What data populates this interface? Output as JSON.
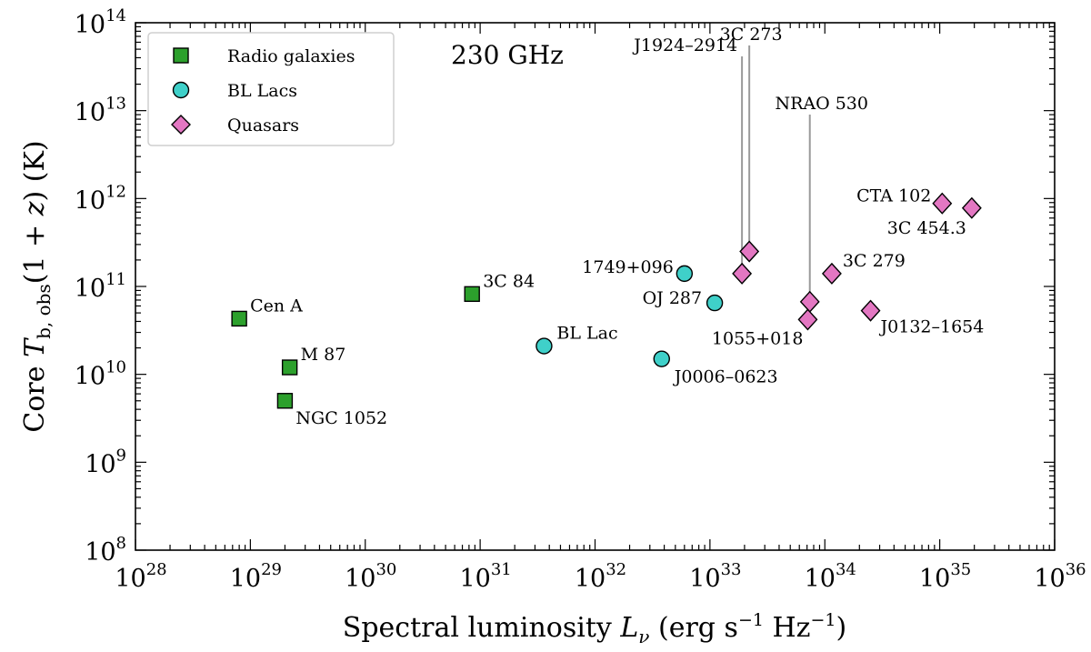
{
  "chart_data": {
    "type": "scatter",
    "xscale": "log",
    "yscale": "log",
    "xlim": [
      1e+28,
      1e+36
    ],
    "ylim": [
      100000000.0,
      100000000000000.0
    ],
    "grid": false,
    "legend_position": "top-left",
    "xlabel": "Spectral luminosity  L_ν  (erg s⁻¹ Hz⁻¹)",
    "ylabel": "Core  T_b,obs(1 + z)  (K)",
    "annotation": "230 GHz",
    "x_ticks": [
      {
        "base": "10",
        "exp": "28"
      },
      {
        "base": "10",
        "exp": "29"
      },
      {
        "base": "10",
        "exp": "30"
      },
      {
        "base": "10",
        "exp": "31"
      },
      {
        "base": "10",
        "exp": "32"
      },
      {
        "base": "10",
        "exp": "33"
      },
      {
        "base": "10",
        "exp": "34"
      },
      {
        "base": "10",
        "exp": "35"
      },
      {
        "base": "10",
        "exp": "36"
      }
    ],
    "y_ticks": [
      {
        "base": "10",
        "exp": "8"
      },
      {
        "base": "10",
        "exp": "9"
      },
      {
        "base": "10",
        "exp": "10"
      },
      {
        "base": "10",
        "exp": "11"
      },
      {
        "base": "10",
        "exp": "12"
      },
      {
        "base": "10",
        "exp": "13"
      },
      {
        "base": "10",
        "exp": "14"
      }
    ],
    "series": [
      {
        "name": "Radio galaxies",
        "marker": "square",
        "color": "#2ca02c",
        "points": [
          {
            "label": "Cen A",
            "x": 8e+28,
            "y": 43000000000.0
          },
          {
            "label": "M 87",
            "x": 2.2e+29,
            "y": 12000000000.0
          },
          {
            "label": "NGC 1052",
            "x": 2e+29,
            "y": 5000000000.0
          },
          {
            "label": "3C 84",
            "x": 8.5e+30,
            "y": 82000000000.0
          }
        ]
      },
      {
        "name": "BL Lacs",
        "marker": "circle",
        "color": "#3fd0c9",
        "points": [
          {
            "label": "BL Lac",
            "x": 3.6e+31,
            "y": 21000000000.0
          },
          {
            "label": "1749+096",
            "x": 6e+32,
            "y": 140000000000.0
          },
          {
            "label": "OJ 287",
            "x": 1.1e+33,
            "y": 65000000000.0
          },
          {
            "label": "J0006–0623",
            "x": 3.8e+32,
            "y": 15000000000.0
          }
        ]
      },
      {
        "name": "Quasars",
        "marker": "diamond",
        "color": "#e377c2",
        "points": [
          {
            "label": "3C 273",
            "x": 2.2e+33,
            "y": 250000000000.0
          },
          {
            "label": "J1924–2914",
            "x": 1.9e+33,
            "y": 140000000000.0
          },
          {
            "label": "NRAO 530",
            "x": 7.4e+33,
            "y": 67000000000.0
          },
          {
            "label": "1055+018",
            "x": 7.1e+33,
            "y": 42000000000.0
          },
          {
            "label": "3C 279",
            "x": 1.15e+34,
            "y": 140000000000.0
          },
          {
            "label": "J0132–1654",
            "x": 2.5e+34,
            "y": 53000000000.0
          },
          {
            "label": "CTA 102",
            "x": 1.05e+35,
            "y": 880000000000.0
          },
          {
            "label": "3C 454.3",
            "x": 1.9e+35,
            "y": 780000000000.0
          }
        ]
      }
    ]
  }
}
